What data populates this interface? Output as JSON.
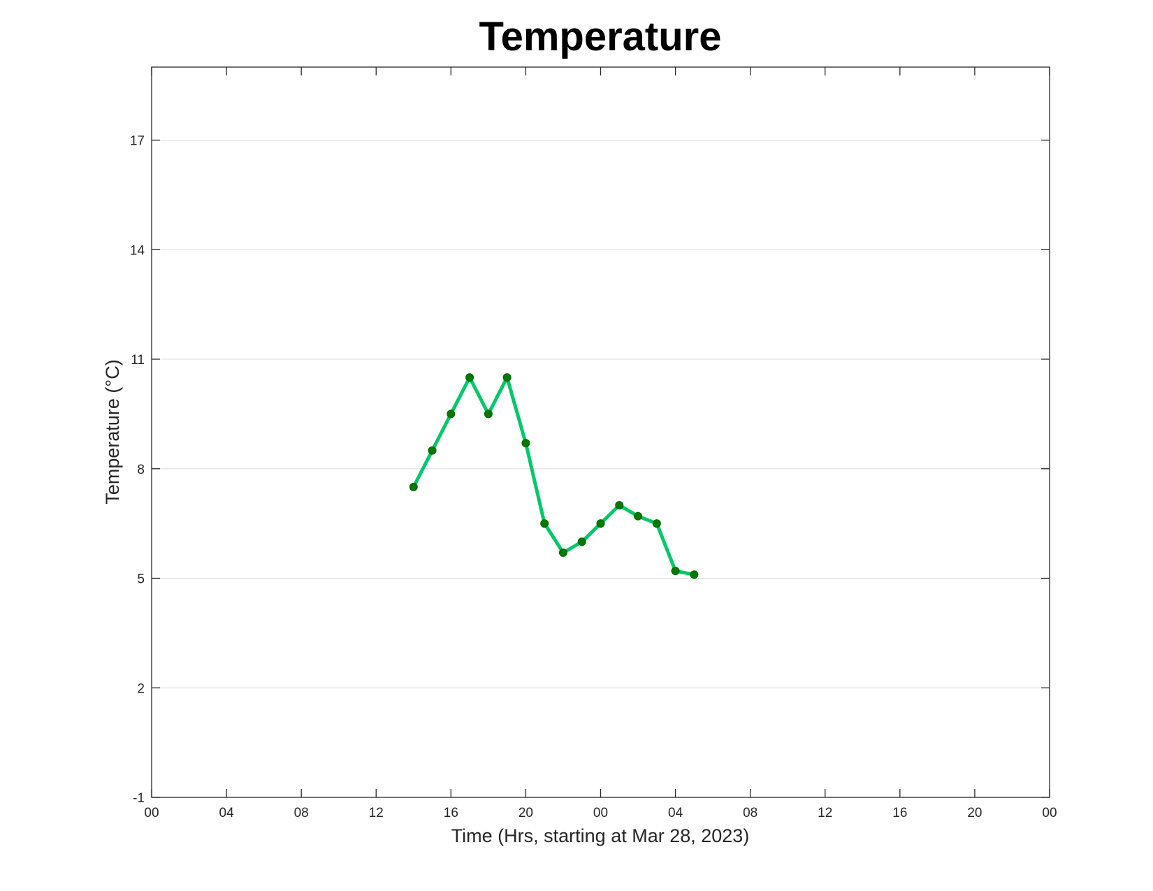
{
  "chart_data": {
    "type": "line",
    "title": "Temperature",
    "xlabel": "Time (Hrs, starting at Mar 28, 2023)",
    "ylabel": "Temperature (°C)",
    "x_ticks": [
      {
        "hour": 0,
        "label": "00"
      },
      {
        "hour": 4,
        "label": "04"
      },
      {
        "hour": 8,
        "label": "08"
      },
      {
        "hour": 12,
        "label": "12"
      },
      {
        "hour": 16,
        "label": "16"
      },
      {
        "hour": 20,
        "label": "20"
      },
      {
        "hour": 24,
        "label": "00"
      },
      {
        "hour": 28,
        "label": "04"
      },
      {
        "hour": 32,
        "label": "08"
      },
      {
        "hour": 36,
        "label": "12"
      },
      {
        "hour": 40,
        "label": "16"
      },
      {
        "hour": 44,
        "label": "20"
      },
      {
        "hour": 48,
        "label": "00"
      }
    ],
    "y_ticks": [
      -1,
      2,
      5,
      8,
      11,
      14,
      17
    ],
    "xlim": [
      0,
      48
    ],
    "ylim": [
      -1,
      19
    ],
    "grid": "horizontal",
    "legend": "none",
    "series": [
      {
        "line_color": "#00c86a",
        "marker_color": "#007a00",
        "x": [
          14,
          15,
          16,
          17,
          18,
          19,
          20,
          21,
          22,
          23,
          24,
          25,
          26,
          27,
          28,
          29
        ],
        "y": [
          7.5,
          8.5,
          9.5,
          10.5,
          9.5,
          10.5,
          8.7,
          6.5,
          5.7,
          6.0,
          6.5,
          7.0,
          6.7,
          6.5,
          5.2,
          5.1
        ]
      }
    ]
  }
}
